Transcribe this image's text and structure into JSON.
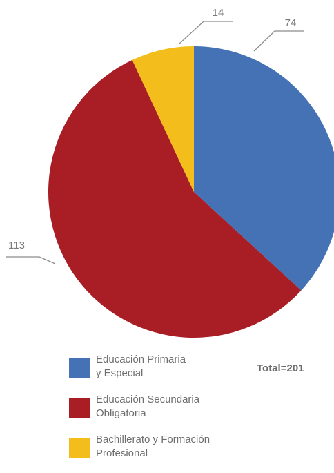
{
  "chart_data": {
    "type": "pie",
    "categories": [
      "Educación Primaria\ny Especial",
      "Educación Secundaria\nObligatoria",
      "Bachillerato y Formación\nProfesional"
    ],
    "values": [
      74,
      113,
      14
    ],
    "data_labels": [
      "74",
      "113",
      "14"
    ],
    "colors": [
      "#4472b5",
      "#a91d25",
      "#f3be1b"
    ],
    "legend_position": "bottom",
    "total_text": "Total=201"
  }
}
